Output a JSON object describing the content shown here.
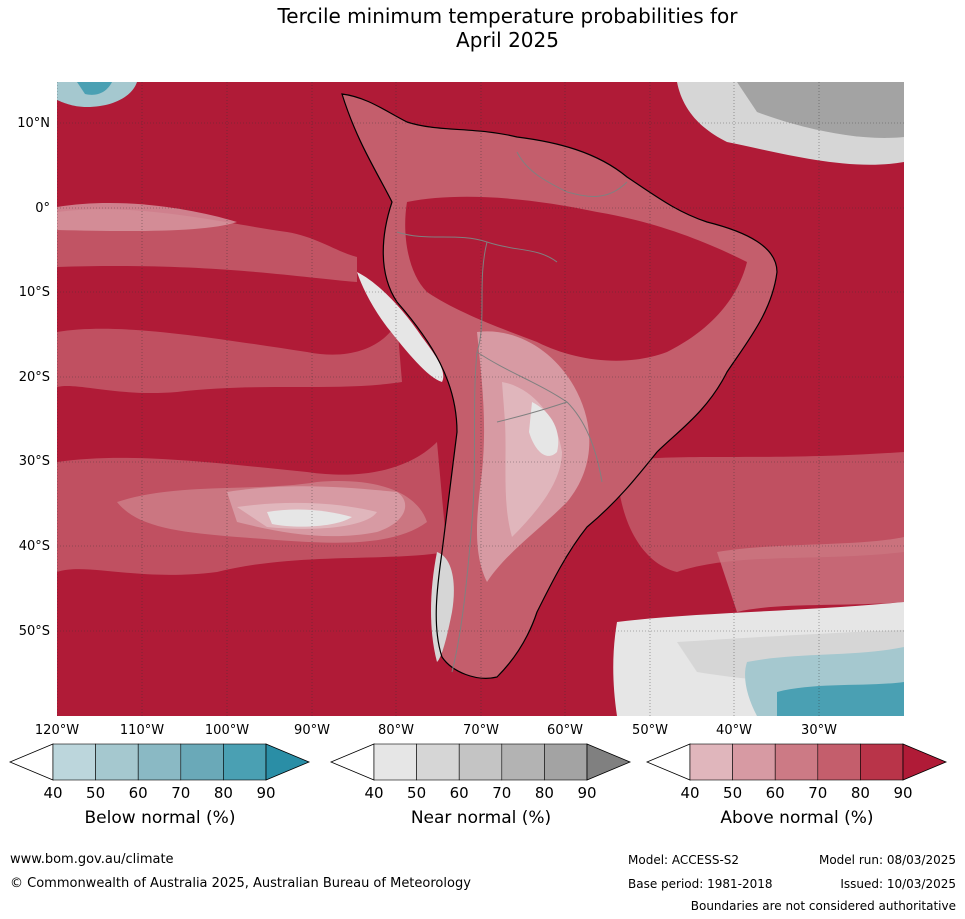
{
  "title_line1": "Tercile minimum temperature probabilities for",
  "title_line2": "April 2025",
  "lat_labels": [
    "10°N",
    "0°",
    "10°S",
    "20°S",
    "30°S",
    "40°S",
    "50°S"
  ],
  "lon_labels": [
    "120°W",
    "110°W",
    "100°W",
    "90°W",
    "80°W",
    "70°W",
    "60°W",
    "50°W",
    "40°W",
    "30°W"
  ],
  "colorbars": [
    {
      "title": "Below normal (%)",
      "ticks": [
        "40",
        "50",
        "60",
        "70",
        "80",
        "90"
      ],
      "colors": [
        "#ffffff",
        "#bcd6dc",
        "#a5c8cf",
        "#8ab9c4",
        "#6aa9b8",
        "#4aa0b3",
        "#2a8ea6"
      ]
    },
    {
      "title": "Near normal (%)",
      "ticks": [
        "40",
        "50",
        "60",
        "70",
        "80",
        "90"
      ],
      "colors": [
        "#ffffff",
        "#e6e6e6",
        "#d6d6d6",
        "#c4c4c4",
        "#b3b3b3",
        "#a3a3a3",
        "#808080"
      ]
    },
    {
      "title": "Above normal (%)",
      "ticks": [
        "40",
        "50",
        "60",
        "70",
        "80",
        "90"
      ],
      "colors": [
        "#ffffff",
        "#e0b6bc",
        "#d79aa3",
        "#cc7a85",
        "#c45e6c",
        "#b93449",
        "#b01b37"
      ]
    }
  ],
  "footer": {
    "website": "www.bom.gov.au/climate",
    "copyright": "© Commonwealth of Australia 2025, Australian Bureau of Meteorology",
    "model": "Model: ACCESS-S2",
    "model_run": "Model run: 08/03/2025",
    "base_period": "Base period: 1981-2018",
    "issued": "Issued: 10/03/2025",
    "disclaimer": "Boundaries are not considered authoritative"
  }
}
